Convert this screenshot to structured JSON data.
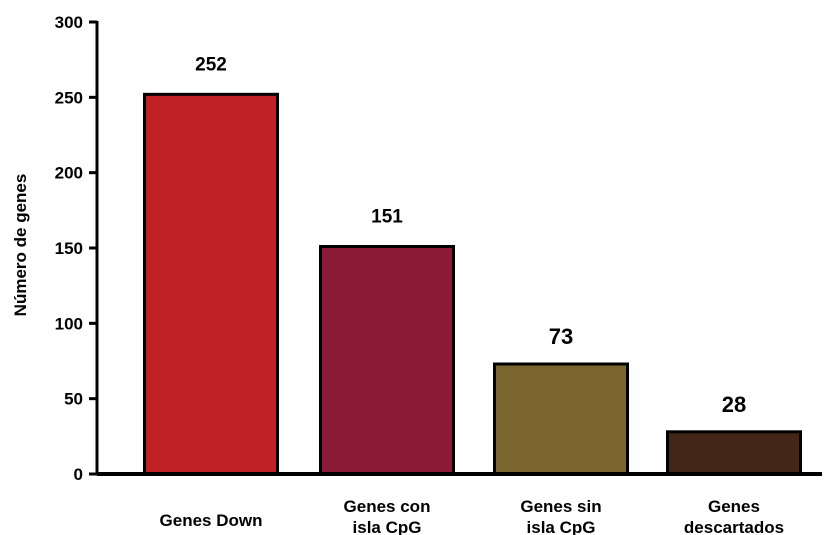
{
  "chart_data": {
    "type": "bar",
    "categories": [
      [
        "Genes Down"
      ],
      [
        "Genes con",
        "isla CpG"
      ],
      [
        "Genes sin",
        "isla CpG"
      ],
      [
        "Genes",
        "descartados"
      ]
    ],
    "values": [
      252,
      151,
      73,
      28
    ],
    "data_labels": [
      "252",
      "151",
      "73",
      "28"
    ],
    "bar_colors": [
      "#c02126",
      "#8b1a36",
      "#7b6630",
      "#442618"
    ],
    "ylabel": "Número de genes",
    "xlabel": "",
    "title": "",
    "ylim": [
      0,
      300
    ],
    "yticks": [
      0,
      50,
      100,
      150,
      200,
      250,
      300
    ],
    "grid": false,
    "legend": "none"
  }
}
